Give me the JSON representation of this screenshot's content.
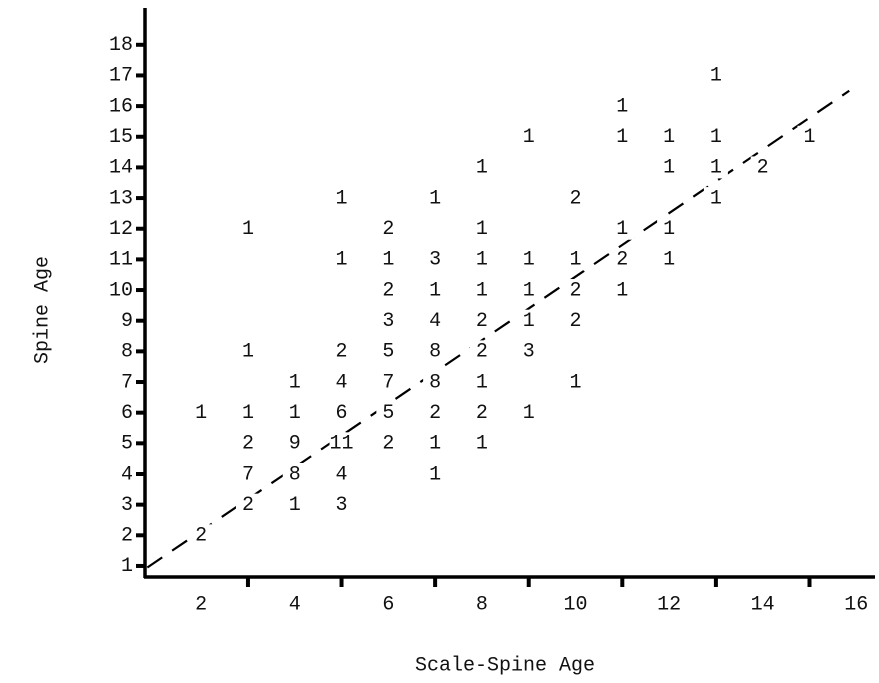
{
  "chart_data": {
    "type": "scatter",
    "x_label": "Scale-Spine Age",
    "y_label": "Spine Age",
    "xlim": [
      0.8,
      16.4
    ],
    "ylim": [
      0.64,
      19.2
    ],
    "xticks": [
      2,
      4,
      6,
      8,
      10,
      12,
      14,
      16
    ],
    "xminorticks": [
      3,
      5,
      7,
      9,
      11,
      13,
      15
    ],
    "yticks": [
      1,
      2,
      3,
      4,
      5,
      6,
      7,
      8,
      9,
      10,
      11,
      12,
      13,
      14,
      15,
      16,
      17,
      18
    ],
    "reference_line": {
      "x": [
        0.85,
        15.85
      ],
      "y": [
        0.95,
        16.5
      ],
      "style": "dashed"
    },
    "x": [
      2,
      2,
      3,
      3,
      3,
      3,
      3,
      3,
      4,
      4,
      4,
      4,
      4,
      5,
      5,
      5,
      5,
      5,
      5,
      5,
      5,
      6,
      6,
      6,
      6,
      6,
      6,
      6,
      6,
      7,
      7,
      7,
      7,
      7,
      7,
      7,
      7,
      7,
      8,
      8,
      8,
      8,
      8,
      8,
      8,
      8,
      8,
      9,
      9,
      9,
      9,
      9,
      9,
      10,
      10,
      10,
      10,
      10,
      11,
      11,
      11,
      11,
      11,
      12,
      12,
      12,
      12,
      13,
      13,
      13,
      13,
      14,
      15
    ],
    "y": [
      6,
      2,
      12,
      8,
      6,
      5,
      4,
      3,
      7,
      6,
      5,
      4,
      3,
      13,
      11,
      8,
      7,
      6,
      5,
      4,
      3,
      12,
      11,
      10,
      9,
      8,
      7,
      6,
      5,
      13,
      11,
      10,
      9,
      8,
      7,
      6,
      5,
      4,
      14,
      12,
      11,
      10,
      9,
      8,
      7,
      6,
      5,
      15,
      11,
      10,
      9,
      8,
      6,
      13,
      11,
      10,
      9,
      7,
      16,
      15,
      12,
      11,
      10,
      15,
      14,
      12,
      11,
      17,
      15,
      14,
      13,
      14,
      15
    ],
    "values": [
      1,
      2,
      1,
      1,
      1,
      2,
      7,
      2,
      1,
      1,
      9,
      8,
      1,
      1,
      1,
      2,
      4,
      6,
      11,
      4,
      3,
      2,
      1,
      2,
      3,
      5,
      7,
      5,
      2,
      1,
      3,
      1,
      4,
      8,
      8,
      2,
      1,
      1,
      1,
      1,
      1,
      1,
      2,
      2,
      1,
      2,
      1,
      1,
      1,
      1,
      1,
      3,
      1,
      2,
      1,
      2,
      2,
      1,
      1,
      1,
      1,
      2,
      1,
      1,
      1,
      1,
      1,
      1,
      1,
      1,
      1,
      2,
      1
    ]
  }
}
